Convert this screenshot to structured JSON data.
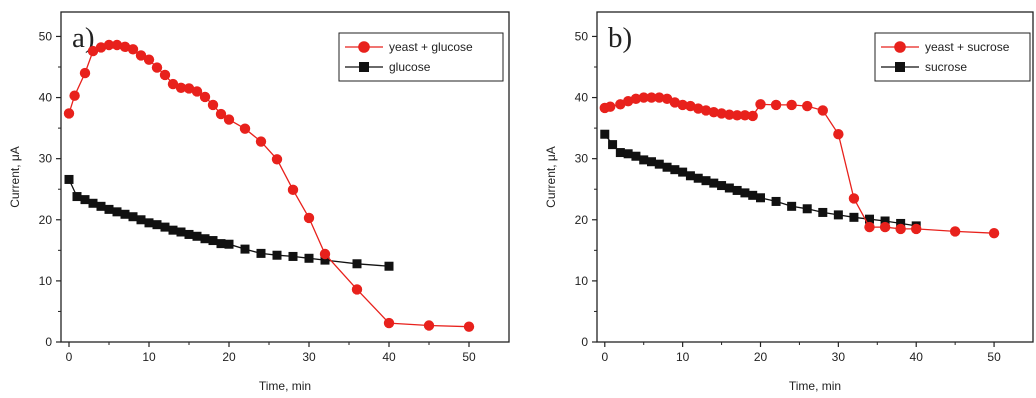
{
  "chart_data": [
    {
      "type": "line",
      "panel_label": "a)",
      "xlabel": "Time, min",
      "ylabel": "Current, μA",
      "xlim": [
        -1,
        55
      ],
      "ylim": [
        0,
        54
      ],
      "x_ticks": [
        0,
        10,
        20,
        30,
        40,
        50
      ],
      "y_ticks": [
        0,
        10,
        20,
        30,
        40,
        50
      ],
      "grid": false,
      "legend_position": "top-right",
      "series": [
        {
          "name": "yeast + glucose",
          "color": "#e8211c",
          "marker": "circle",
          "x": [
            0,
            0.7,
            2,
            3,
            4,
            5,
            6,
            7,
            8,
            9,
            10,
            11,
            12,
            13,
            14,
            15,
            16,
            17,
            18,
            19,
            20,
            22,
            24,
            26,
            28,
            30,
            32,
            36,
            40,
            45,
            50
          ],
          "y": [
            37.4,
            40.3,
            44.0,
            47.6,
            48.2,
            48.6,
            48.6,
            48.3,
            47.9,
            46.9,
            46.2,
            44.9,
            43.7,
            42.2,
            41.6,
            41.5,
            41.0,
            40.1,
            38.8,
            37.3,
            36.4,
            34.9,
            32.8,
            29.9,
            24.9,
            20.3,
            14.4,
            8.6,
            3.1,
            2.7,
            2.5
          ]
        },
        {
          "name": "glucose",
          "color": "#111111",
          "marker": "square",
          "x": [
            0,
            1,
            2,
            3,
            4,
            5,
            6,
            7,
            8,
            9,
            10,
            11,
            12,
            13,
            14,
            15,
            16,
            17,
            18,
            19,
            20,
            22,
            24,
            26,
            28,
            30,
            32,
            36,
            40
          ],
          "y": [
            26.6,
            23.8,
            23.3,
            22.7,
            22.2,
            21.7,
            21.3,
            20.9,
            20.5,
            20.0,
            19.5,
            19.2,
            18.8,
            18.3,
            18.0,
            17.6,
            17.3,
            16.9,
            16.6,
            16.1,
            16.0,
            15.2,
            14.5,
            14.2,
            14.0,
            13.7,
            13.4,
            12.8,
            12.4
          ]
        }
      ]
    },
    {
      "type": "line",
      "panel_label": "b)",
      "xlabel": "Time, min",
      "ylabel": "Current, μA",
      "xlim": [
        -1,
        55
      ],
      "ylim": [
        0,
        54
      ],
      "x_ticks": [
        0,
        10,
        20,
        30,
        40,
        50
      ],
      "y_ticks": [
        0,
        10,
        20,
        30,
        40,
        50
      ],
      "grid": false,
      "legend_position": "top-right",
      "series": [
        {
          "name": "yeast + sucrose",
          "color": "#e8211c",
          "marker": "circle",
          "x": [
            0,
            0.7,
            2,
            3,
            4,
            5,
            6,
            7,
            8,
            9,
            10,
            11,
            12,
            13,
            14,
            15,
            16,
            17,
            18,
            19,
            20,
            22,
            24,
            26,
            28,
            30,
            32,
            34,
            36,
            38,
            40,
            45,
            50
          ],
          "y": [
            38.3,
            38.5,
            38.9,
            39.4,
            39.8,
            40.0,
            40.0,
            40.0,
            39.8,
            39.2,
            38.8,
            38.6,
            38.2,
            37.9,
            37.6,
            37.4,
            37.2,
            37.1,
            37.1,
            37.0,
            38.9,
            38.8,
            38.8,
            38.6,
            37.9,
            34.0,
            23.5,
            18.8,
            18.8,
            18.5,
            18.5,
            18.1,
            17.8
          ]
        },
        {
          "name": "sucrose",
          "color": "#111111",
          "marker": "square",
          "x": [
            0,
            1,
            2,
            3,
            4,
            5,
            6,
            7,
            8,
            9,
            10,
            11,
            12,
            13,
            14,
            15,
            16,
            17,
            18,
            19,
            20,
            22,
            24,
            26,
            28,
            30,
            32,
            34,
            36,
            38,
            40
          ],
          "y": [
            34.0,
            32.3,
            31.0,
            30.8,
            30.4,
            29.8,
            29.5,
            29.1,
            28.6,
            28.2,
            27.8,
            27.2,
            26.8,
            26.4,
            26.0,
            25.6,
            25.2,
            24.8,
            24.4,
            24.0,
            23.6,
            23.0,
            22.2,
            21.8,
            21.2,
            20.8,
            20.4,
            20.1,
            19.8,
            19.4,
            19.0
          ]
        }
      ]
    }
  ]
}
